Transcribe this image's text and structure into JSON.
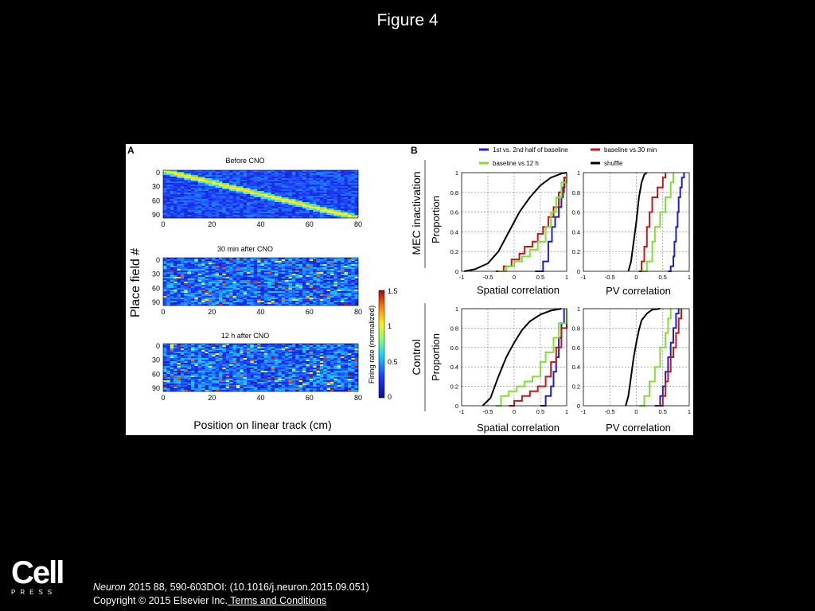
{
  "slide": {
    "title": "Figure 4",
    "citation_journal": "Neuron",
    "citation_rest": " 2015 88, 590-603DOI: (10.1016/j.neuron.2015.09.051)",
    "copyright": "Copyright © 2015 Elsevier Inc.",
    "terms_link": " Terms and Conditions",
    "logo_main": "Cell",
    "logo_sub": "PRESS"
  },
  "panel_a": {
    "label": "A",
    "ylabel": "Place field #",
    "xlabel": "Position on linear track (cm)",
    "heatmaps": [
      {
        "title": "Before CNO",
        "pattern": "diagonal"
      },
      {
        "title": "30 min after CNO",
        "pattern": "scattered"
      },
      {
        "title": "12 h after CNO",
        "pattern": "scattered"
      }
    ],
    "x_ticks": [
      "0",
      "20",
      "40",
      "60",
      "80"
    ],
    "y_ticks": [
      "0",
      "30",
      "60",
      "90"
    ],
    "colorbar": {
      "label": "Firing rate (normalized)",
      "ticks": [
        "1.5",
        "1",
        "0.5",
        "0"
      ]
    }
  },
  "panel_b": {
    "label": "B",
    "legend": [
      {
        "name": "1st vs. 2nd half of baseline",
        "color": "#1c22c8"
      },
      {
        "name": "baseline vs.30 min",
        "color": "#c41818"
      },
      {
        "name": "baseline vs.12 h",
        "color": "#7ee030"
      },
      {
        "name": "shuffle",
        "color": "#000000"
      }
    ],
    "row_labels": [
      "MEC inactivation",
      "Control"
    ],
    "ylabel": "Proportion",
    "y_ticks": [
      "0",
      "0.2",
      "0.4",
      "0.6",
      "0.8",
      "1"
    ],
    "x_ticks": [
      "-1",
      "-0.5",
      "0",
      "0.5",
      "1"
    ],
    "xlabels": [
      "Spatial correlation",
      "PV correlation"
    ]
  },
  "chart_data": [
    {
      "type": "line",
      "subplot": "MEC inactivation - Spatial correlation",
      "xlabel": "Spatial correlation",
      "ylabel": "Proportion",
      "xlim": [
        -1,
        1
      ],
      "ylim": [
        0,
        1
      ],
      "grid": true,
      "series": [
        {
          "name": "1st vs. 2nd half of baseline",
          "color": "#1c22c8",
          "x": [
            0.4,
            0.55,
            0.65,
            0.72,
            0.78,
            0.85,
            0.9,
            0.93,
            0.96,
            1.0
          ],
          "y": [
            0,
            0.1,
            0.3,
            0.45,
            0.55,
            0.65,
            0.75,
            0.85,
            0.95,
            1
          ]
        },
        {
          "name": "baseline vs.30 min",
          "color": "#c41818",
          "x": [
            -0.35,
            -0.2,
            -0.05,
            0.1,
            0.2,
            0.35,
            0.45,
            0.55,
            0.65,
            0.75,
            0.85,
            0.95,
            1.0
          ],
          "y": [
            0,
            0.05,
            0.12,
            0.18,
            0.25,
            0.3,
            0.38,
            0.45,
            0.55,
            0.65,
            0.8,
            0.95,
            1
          ]
        },
        {
          "name": "baseline vs.12 h",
          "color": "#7ee030",
          "x": [
            -0.3,
            -0.15,
            0.0,
            0.15,
            0.3,
            0.45,
            0.6,
            0.7,
            0.8,
            0.9,
            1.0
          ],
          "y": [
            0,
            0.05,
            0.1,
            0.15,
            0.22,
            0.3,
            0.45,
            0.6,
            0.75,
            0.9,
            1
          ]
        },
        {
          "name": "shuffle",
          "color": "#000000",
          "x": [
            -0.95,
            -0.75,
            -0.5,
            -0.3,
            -0.1,
            0.1,
            0.3,
            0.5,
            0.7,
            0.9,
            1.0
          ],
          "y": [
            0,
            0.02,
            0.08,
            0.2,
            0.4,
            0.6,
            0.75,
            0.87,
            0.95,
            0.99,
            1
          ]
        }
      ]
    },
    {
      "type": "line",
      "subplot": "MEC inactivation - PV correlation",
      "xlabel": "PV correlation",
      "xlim": [
        -1,
        1
      ],
      "ylim": [
        0,
        1
      ],
      "grid": true,
      "series": [
        {
          "name": "1st vs. 2nd half of baseline",
          "color": "#1c22c8",
          "x": [
            0.6,
            0.65,
            0.7,
            0.72,
            0.75,
            0.78,
            0.8,
            0.83,
            0.86,
            0.9
          ],
          "y": [
            0,
            0.05,
            0.15,
            0.3,
            0.45,
            0.6,
            0.75,
            0.85,
            0.95,
            1
          ]
        },
        {
          "name": "baseline vs.30 min",
          "color": "#c41818",
          "x": [
            0.05,
            0.1,
            0.15,
            0.2,
            0.25,
            0.3,
            0.4,
            0.5,
            0.55
          ],
          "y": [
            0,
            0.1,
            0.25,
            0.45,
            0.6,
            0.75,
            0.85,
            0.95,
            1
          ]
        },
        {
          "name": "baseline vs.12 h",
          "color": "#7ee030",
          "x": [
            0.1,
            0.2,
            0.3,
            0.35,
            0.45,
            0.55,
            0.65,
            0.7
          ],
          "y": [
            0,
            0.1,
            0.3,
            0.45,
            0.6,
            0.75,
            0.9,
            1
          ]
        },
        {
          "name": "shuffle",
          "color": "#000000",
          "x": [
            -0.15,
            -0.1,
            -0.05,
            0.0,
            0.05,
            0.1,
            0.15,
            0.2
          ],
          "y": [
            0,
            0.1,
            0.3,
            0.5,
            0.75,
            0.9,
            0.98,
            1
          ]
        }
      ]
    },
    {
      "type": "line",
      "subplot": "Control - Spatial correlation",
      "xlabel": "Spatial correlation",
      "ylabel": "Proportion",
      "xlim": [
        -1,
        1
      ],
      "ylim": [
        0,
        1
      ],
      "grid": true,
      "series": [
        {
          "name": "1st vs. 2nd half of baseline",
          "color": "#1c22c8",
          "x": [
            0.5,
            0.6,
            0.7,
            0.75,
            0.8,
            0.85,
            0.9,
            0.95
          ],
          "y": [
            0,
            0.1,
            0.2,
            0.35,
            0.5,
            0.7,
            0.85,
            1
          ]
        },
        {
          "name": "baseline vs.30 min",
          "color": "#c41818",
          "x": [
            -0.1,
            0.0,
            0.15,
            0.3,
            0.45,
            0.6,
            0.7,
            0.8,
            0.9,
            1.0
          ],
          "y": [
            0,
            0.05,
            0.1,
            0.15,
            0.2,
            0.3,
            0.45,
            0.6,
            0.8,
            1
          ]
        },
        {
          "name": "baseline vs.12 h",
          "color": "#7ee030",
          "x": [
            -0.35,
            -0.25,
            -0.1,
            0.05,
            0.2,
            0.35,
            0.5,
            0.6,
            0.75,
            0.85,
            1.0
          ],
          "y": [
            0,
            0.1,
            0.15,
            0.2,
            0.25,
            0.3,
            0.45,
            0.55,
            0.7,
            0.85,
            1
          ]
        },
        {
          "name": "shuffle",
          "color": "#000000",
          "x": [
            -0.6,
            -0.45,
            -0.3,
            -0.15,
            0.0,
            0.15,
            0.3,
            0.5,
            0.7,
            0.9
          ],
          "y": [
            0,
            0.08,
            0.3,
            0.5,
            0.65,
            0.78,
            0.87,
            0.94,
            0.98,
            1
          ]
        }
      ]
    },
    {
      "type": "line",
      "subplot": "Control - PV correlation",
      "xlabel": "PV correlation",
      "xlim": [
        -1,
        1
      ],
      "ylim": [
        0,
        1
      ],
      "grid": true,
      "series": [
        {
          "name": "1st vs. 2nd half of baseline",
          "color": "#1c22c8",
          "x": [
            0.35,
            0.45,
            0.5,
            0.55,
            0.6,
            0.65,
            0.7,
            0.75,
            0.8
          ],
          "y": [
            0,
            0.1,
            0.2,
            0.35,
            0.5,
            0.65,
            0.8,
            0.95,
            1
          ]
        },
        {
          "name": "baseline vs.30 min",
          "color": "#c41818",
          "x": [
            0.4,
            0.5,
            0.55,
            0.6,
            0.65,
            0.7,
            0.75,
            0.8,
            0.85
          ],
          "y": [
            0,
            0.1,
            0.25,
            0.35,
            0.5,
            0.6,
            0.75,
            0.9,
            1
          ]
        },
        {
          "name": "baseline vs.12 h",
          "color": "#7ee030",
          "x": [
            0.05,
            0.15,
            0.25,
            0.35,
            0.45,
            0.55,
            0.6,
            0.65
          ],
          "y": [
            0,
            0.1,
            0.25,
            0.4,
            0.6,
            0.75,
            0.9,
            1
          ]
        },
        {
          "name": "shuffle",
          "color": "#000000",
          "x": [
            -0.2,
            -0.15,
            -0.1,
            -0.05,
            0.0,
            0.05,
            0.1,
            0.2,
            0.3,
            0.45
          ],
          "y": [
            0,
            0.1,
            0.3,
            0.5,
            0.65,
            0.78,
            0.88,
            0.95,
            0.99,
            1
          ]
        }
      ]
    }
  ]
}
